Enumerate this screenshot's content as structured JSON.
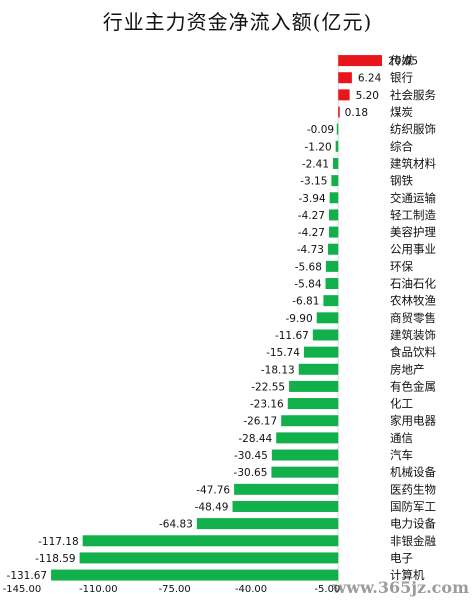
{
  "chart_data": {
    "type": "bar",
    "orientation": "horizontal",
    "title": "行业主力资金净流入额(亿元)",
    "categories": [
      "传媒",
      "银行",
      "社会服务",
      "煤炭",
      "纺织服饰",
      "综合",
      "建筑材料",
      "钢铁",
      "交通运输",
      "轻工制造",
      "美容护理",
      "公用事业",
      "环保",
      "石油石化",
      "农林牧渔",
      "商贸零售",
      "建筑装饰",
      "食品饮料",
      "房地产",
      "有色金属",
      "化工",
      "家用电器",
      "通信",
      "汽车",
      "机械设备",
      "医药生物",
      "国防军工",
      "电力设备",
      "非银金融",
      "电子",
      "计算机"
    ],
    "values": [
      20.05,
      6.24,
      5.2,
      0.18,
      -0.09,
      -1.2,
      -2.41,
      -3.15,
      -3.94,
      -4.27,
      -4.27,
      -4.73,
      -5.68,
      -5.84,
      -6.81,
      -9.9,
      -11.67,
      -15.74,
      -18.13,
      -22.55,
      -23.16,
      -26.17,
      -28.44,
      -30.45,
      -30.65,
      -47.76,
      -48.49,
      -64.83,
      -117.18,
      -118.59,
      -131.67
    ],
    "value_labels": [
      "20.05",
      "6.24",
      "5.20",
      "0.18",
      "-0.09",
      "-1.20",
      "-2.41",
      "-3.15",
      "-3.94",
      "-4.27",
      "-4.27",
      "-4.73",
      "-5.68",
      "-5.84",
      "-6.81",
      "-9.90",
      "-11.67",
      "-15.74",
      "-18.13",
      "-22.55",
      "-23.16",
      "-26.17",
      "-28.44",
      "-30.45",
      "-30.65",
      "-47.76",
      "-48.49",
      "-64.83",
      "-117.18",
      "-118.59",
      "-131.67"
    ],
    "xlim": [
      -145,
      20.05
    ],
    "x_ticks": [
      -145,
      -110,
      -75,
      -40,
      -5
    ],
    "x_tick_labels": [
      "-145.00",
      "-110.00",
      "-75.00",
      "-40.00",
      "-5.00"
    ],
    "colors": {
      "positive": "#e8151b",
      "negative": "#12b04a"
    },
    "grid": false,
    "legend": "none"
  },
  "watermark": "www.365jz.com"
}
